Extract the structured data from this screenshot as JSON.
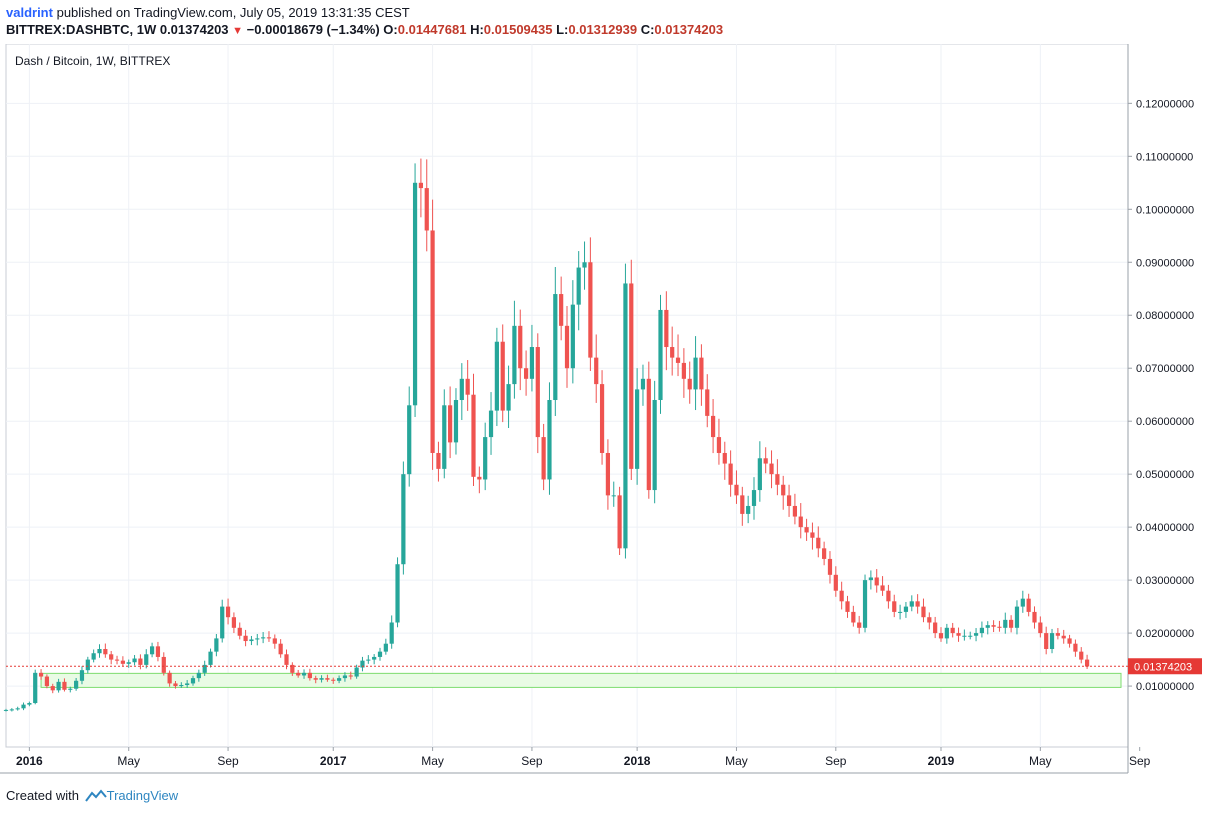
{
  "header": {
    "user": "valdrint",
    "published_text": "published on TradingView.com, July 05, 2019 13:31:35 CEST",
    "symbol": "BITTREX:DASHBTC, 1W",
    "last": "0.01374203",
    "change": "−0.00018679 (−1.34%)",
    "o_label": "O:",
    "o_value": "0.01447681",
    "h_label": "H:",
    "h_value": "0.01509435",
    "l_label": "L:",
    "l_value": "0.01312939",
    "c_label": "C:",
    "c_value": "0.01374203"
  },
  "footer": {
    "created_with": "Created with",
    "brand": "TradingView"
  },
  "chart_data": {
    "type": "candlestick",
    "title": "Dash / Bitcoin, 1W, BITTREX",
    "price_tag": "0.01374203",
    "colors": {
      "up": "#26a69a",
      "down": "#ef5350",
      "support_zone": "#7ddc6f",
      "grid": "#eef1f6",
      "price_line": "#e53935"
    },
    "support_zone": [
      0.00975,
      0.0124
    ],
    "last_price": 0.01374203,
    "ylim": [
      -0.0015,
      0.1312
    ],
    "yticks": [
      0.01,
      0.02,
      0.03,
      0.04,
      0.05,
      0.06,
      0.07,
      0.08,
      0.09,
      0.1,
      0.11,
      0.12
    ],
    "ytick_labels": [
      "0.01000000",
      "0.02000000",
      "0.03000000",
      "0.04000000",
      "0.05000000",
      "0.06000000",
      "0.07000000",
      "0.08000000",
      "0.09000000",
      "0.10000000",
      "0.11000000",
      "0.12000000"
    ],
    "xlim_weeks": [
      -4,
      188
    ],
    "xticks": [
      {
        "label": "2016",
        "week": 0,
        "bold": true
      },
      {
        "label": "May",
        "week": 17,
        "bold": false
      },
      {
        "label": "Sep",
        "week": 34,
        "bold": false
      },
      {
        "label": "2017",
        "week": 52,
        "bold": true
      },
      {
        "label": "May",
        "week": 69,
        "bold": false
      },
      {
        "label": "Sep",
        "week": 86,
        "bold": false
      },
      {
        "label": "2018",
        "week": 104,
        "bold": true
      },
      {
        "label": "May",
        "week": 121,
        "bold": false
      },
      {
        "label": "Sep",
        "week": 138,
        "bold": false
      },
      {
        "label": "2019",
        "week": 156,
        "bold": true
      },
      {
        "label": "May",
        "week": 173,
        "bold": false
      },
      {
        "label": "Sep",
        "week": 190,
        "bold": false
      }
    ],
    "start_week": -4,
    "closes": [
      0.0055,
      0.0056,
      0.0058,
      0.0065,
      0.0068,
      0.0125,
      0.0118,
      0.01,
      0.0092,
      0.0108,
      0.0093,
      0.0095,
      0.011,
      0.013,
      0.015,
      0.0162,
      0.017,
      0.016,
      0.015,
      0.0148,
      0.0142,
      0.0145,
      0.0152,
      0.014,
      0.016,
      0.0175,
      0.0155,
      0.0125,
      0.0105,
      0.01,
      0.0102,
      0.0105,
      0.0115,
      0.0125,
      0.014,
      0.0165,
      0.019,
      0.025,
      0.023,
      0.021,
      0.0195,
      0.0185,
      0.0188,
      0.019,
      0.0192,
      0.019,
      0.018,
      0.016,
      0.014,
      0.0125,
      0.012,
      0.0125,
      0.0115,
      0.0112,
      0.0115,
      0.0112,
      0.011,
      0.0115,
      0.012,
      0.0118,
      0.0135,
      0.0148,
      0.015,
      0.0155,
      0.0165,
      0.018,
      0.022,
      0.033,
      0.05,
      0.063,
      0.105,
      0.104,
      0.096,
      0.054,
      0.051,
      0.063,
      0.056,
      0.064,
      0.068,
      0.065,
      0.0495,
      0.049,
      0.057,
      0.062,
      0.075,
      0.062,
      0.067,
      0.078,
      0.07,
      0.068,
      0.074,
      0.057,
      0.049,
      0.064,
      0.084,
      0.078,
      0.07,
      0.082,
      0.089,
      0.09,
      0.072,
      0.067,
      0.054,
      0.046,
      0.046,
      0.036,
      0.086,
      0.051,
      0.066,
      0.068,
      0.047,
      0.064,
      0.081,
      0.074,
      0.072,
      0.071,
      0.068,
      0.066,
      0.072,
      0.066,
      0.061,
      0.057,
      0.054,
      0.052,
      0.048,
      0.046,
      0.0425,
      0.044,
      0.047,
      0.053,
      0.052,
      0.05,
      0.048,
      0.046,
      0.044,
      0.042,
      0.04,
      0.039,
      0.038,
      0.036,
      0.034,
      0.031,
      0.028,
      0.026,
      0.024,
      0.022,
      0.021,
      0.03,
      0.0305,
      0.029,
      0.028,
      0.026,
      0.024,
      0.024,
      0.025,
      0.026,
      0.025,
      0.023,
      0.022,
      0.02,
      0.019,
      0.021,
      0.02,
      0.0195,
      0.0195,
      0.0195,
      0.02,
      0.021,
      0.0215,
      0.0212,
      0.021,
      0.0225,
      0.021,
      0.025,
      0.0265,
      0.024,
      0.022,
      0.02,
      0.017,
      0.02,
      0.0195,
      0.019,
      0.018,
      0.0165,
      0.015,
      0.0137
    ]
  }
}
